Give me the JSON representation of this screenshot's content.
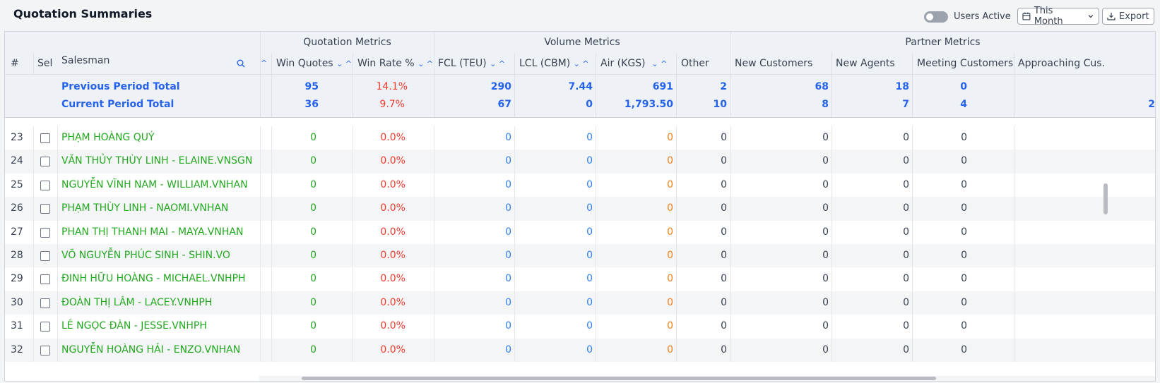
{
  "page": {
    "title": "Quotation Summaries",
    "users_active_label": "Users Active",
    "users_active_on": false,
    "period_label": "This Month",
    "export_label": "Export"
  },
  "table": {
    "groups": {
      "quotation": "Quotation Metrics",
      "volume": "Volume Metrics",
      "partner": "Partner Metrics"
    },
    "headers": {
      "num": "#",
      "sel": "Sel",
      "salesman": "Salesman",
      "win_quotes": "Win Quotes",
      "win_rate": "Win Rate %",
      "fcl": "FCL (TEU)",
      "lcl": "LCL (CBM)",
      "air": "Air (KGS)",
      "other": "Other",
      "new_customers": "New Customers",
      "new_agents": "New Agents",
      "meeting_customers": "Meeting Customers",
      "approaching": "Approaching Cus."
    },
    "previous": {
      "label": "Previous Period Total",
      "win_quotes": "95",
      "win_rate": "14.1%",
      "fcl": "290",
      "lcl": "7.44",
      "air": "691",
      "other": "2",
      "new_customers": "68",
      "new_agents": "18",
      "meeting_customers": "0"
    },
    "current": {
      "label": "Current Period Total",
      "win_quotes": "36",
      "win_rate": "9.7%",
      "fcl": "67",
      "lcl": "0",
      "air": "1,793.50",
      "other": "10",
      "new_customers": "8",
      "new_agents": "7",
      "meeting_customers": "4",
      "approaching": "2"
    },
    "rows": [
      {
        "num": "23",
        "name": "PHẠM HOÀNG QUÝ",
        "win_quotes": "0",
        "win_rate": "0.0%",
        "fcl": "0",
        "lcl": "0",
        "air": "0",
        "other": "0",
        "new_customers": "0",
        "new_agents": "0",
        "meeting_customers": "0"
      },
      {
        "num": "24",
        "name": "VĂN THỦY THÙY LINH - ELAINE.VNSGN",
        "win_quotes": "0",
        "win_rate": "0.0%",
        "fcl": "0",
        "lcl": "0",
        "air": "0",
        "other": "0",
        "new_customers": "0",
        "new_agents": "0",
        "meeting_customers": "0"
      },
      {
        "num": "25",
        "name": "NGUYỄN VĨNH NAM - WILLIAM.VNHAN",
        "win_quotes": "0",
        "win_rate": "0.0%",
        "fcl": "0",
        "lcl": "0",
        "air": "0",
        "other": "0",
        "new_customers": "0",
        "new_agents": "0",
        "meeting_customers": "0"
      },
      {
        "num": "26",
        "name": "PHẠM THÙY LINH - NAOMI.VNHAN",
        "win_quotes": "0",
        "win_rate": "0.0%",
        "fcl": "0",
        "lcl": "0",
        "air": "0",
        "other": "0",
        "new_customers": "0",
        "new_agents": "0",
        "meeting_customers": "0"
      },
      {
        "num": "27",
        "name": "PHAN THỊ THANH MAI - MAYA.VNHAN",
        "win_quotes": "0",
        "win_rate": "0.0%",
        "fcl": "0",
        "lcl": "0",
        "air": "0",
        "other": "0",
        "new_customers": "0",
        "new_agents": "0",
        "meeting_customers": "0"
      },
      {
        "num": "28",
        "name": "VÕ NGUYỄN PHÚC SINH - SHIN.VO",
        "win_quotes": "0",
        "win_rate": "0.0%",
        "fcl": "0",
        "lcl": "0",
        "air": "0",
        "other": "0",
        "new_customers": "0",
        "new_agents": "0",
        "meeting_customers": "0"
      },
      {
        "num": "29",
        "name": "ĐINH HỮU HOÀNG - MICHAEL.VNHPH",
        "win_quotes": "0",
        "win_rate": "0.0%",
        "fcl": "0",
        "lcl": "0",
        "air": "0",
        "other": "0",
        "new_customers": "0",
        "new_agents": "0",
        "meeting_customers": "0"
      },
      {
        "num": "30",
        "name": "ĐOÀN THỊ LÂM - LACEY.VNHPH",
        "win_quotes": "0",
        "win_rate": "0.0%",
        "fcl": "0",
        "lcl": "0",
        "air": "0",
        "other": "0",
        "new_customers": "0",
        "new_agents": "0",
        "meeting_customers": "0"
      },
      {
        "num": "31",
        "name": "LÊ NGỌC ĐÀN - JESSE.VNHPH",
        "win_quotes": "0",
        "win_rate": "0.0%",
        "fcl": "0",
        "lcl": "0",
        "air": "0",
        "other": "0",
        "new_customers": "0",
        "new_agents": "0",
        "meeting_customers": "0"
      },
      {
        "num": "32",
        "name": "NGUYỄN HOÀNG HẢI - ENZO.VNHAN",
        "win_quotes": "0",
        "win_rate": "0.0%",
        "fcl": "0",
        "lcl": "0",
        "air": "0",
        "other": "0",
        "new_customers": "0",
        "new_agents": "0",
        "meeting_customers": "0"
      }
    ]
  }
}
